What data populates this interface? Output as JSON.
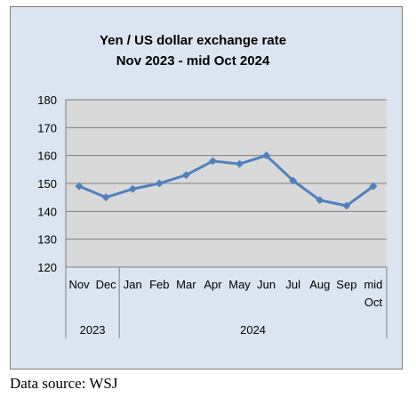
{
  "chart_data": {
    "type": "line",
    "title": "Yen / US dollar exchange rate",
    "subtitle": "Nov 2023 - mid Oct 2024",
    "xlabel": "",
    "ylabel": "",
    "categories": [
      "Nov",
      "Dec",
      "Jan",
      "Feb",
      "Mar",
      "Apr",
      "May",
      "Jun",
      "Jul",
      "Aug",
      "Sep",
      "mid Oct"
    ],
    "category_groups": [
      {
        "label": "2023",
        "categories": [
          "Nov",
          "Dec"
        ]
      },
      {
        "label": "2024",
        "categories": [
          "Jan",
          "Feb",
          "Mar",
          "Apr",
          "May",
          "Jun",
          "Jul",
          "Aug",
          "Sep",
          "mid Oct"
        ]
      }
    ],
    "series": [
      {
        "values": [
          149,
          145,
          148,
          150,
          153,
          158,
          157,
          160,
          151,
          144,
          142,
          149
        ],
        "color": "#4f81bd"
      }
    ],
    "ylim": [
      120,
      180
    ],
    "yticks": [
      120,
      130,
      140,
      150,
      160,
      170,
      180
    ],
    "grid": true,
    "legend": "none",
    "colors": {
      "plot_background": "#d9d9d9",
      "chart_background": "#dbe5f1",
      "gridline": "#808080",
      "line": "#4f81bd"
    }
  },
  "footer": {
    "data_source": "Data source: WSJ"
  }
}
